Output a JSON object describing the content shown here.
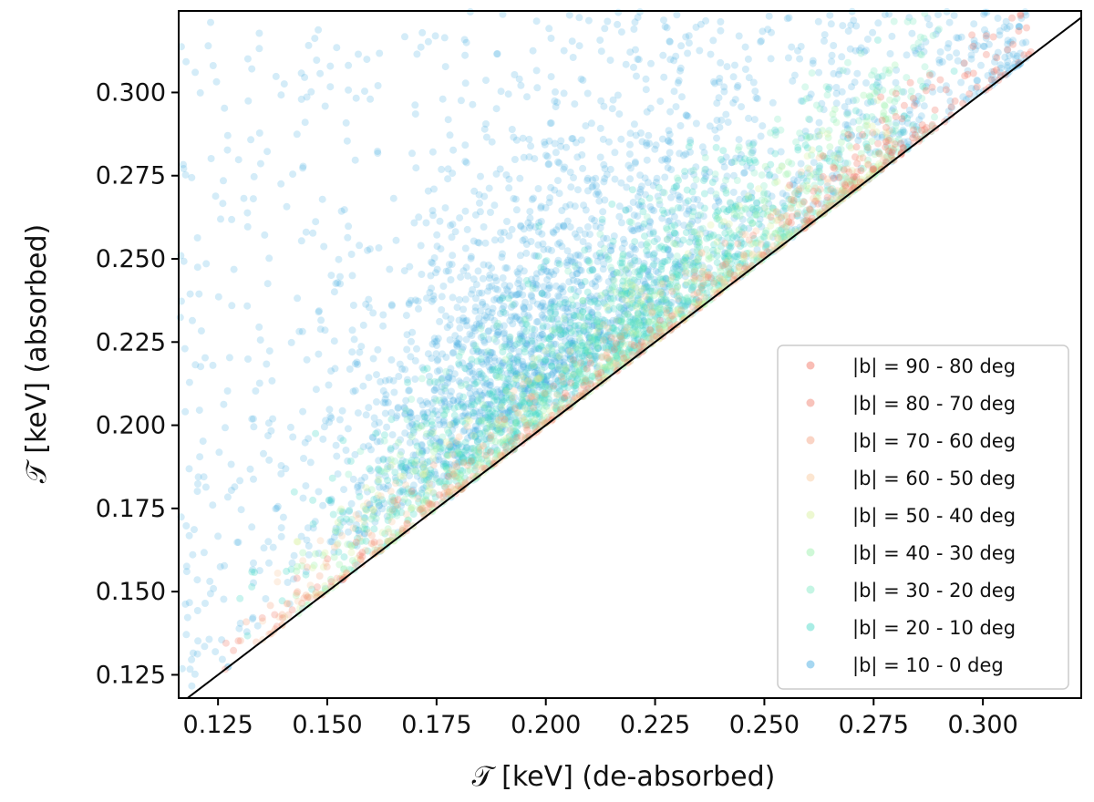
{
  "chart_data": {
    "type": "scatter",
    "xlabel": "𝒯 [keV] (de-absorbed)",
    "ylabel": "𝒯 [keV] (absorbed)",
    "xlim": [
      0.116,
      0.3225
    ],
    "ylim": [
      0.118,
      0.3245
    ],
    "x_ticks": [
      "0.125",
      "0.150",
      "0.175",
      "0.200",
      "0.225",
      "0.250",
      "0.275",
      "0.300"
    ],
    "y_ticks": [
      "0.125",
      "0.150",
      "0.175",
      "0.200",
      "0.225",
      "0.250",
      "0.275",
      "0.300"
    ],
    "reference_line": "y = x",
    "grid": false,
    "legend_position": "lower-right",
    "series": [
      {
        "name": "|b| = 90 - 80 deg",
        "color": "#f26d5b",
        "approx_points": 80,
        "x_range": [
          0.255,
          0.312
        ],
        "y_offset_range": [
          0.0,
          0.022
        ]
      },
      {
        "name": "|b| = 80 - 70 deg",
        "color": "#ef7a68",
        "approx_points": 150,
        "x_range": [
          0.12,
          0.29
        ],
        "y_offset_range": [
          0.0,
          0.012
        ]
      },
      {
        "name": "|b| = 70 - 60 deg",
        "color": "#f4a07e",
        "approx_points": 200,
        "x_range": [
          0.13,
          0.28
        ],
        "y_offset_range": [
          0.0,
          0.014
        ]
      },
      {
        "name": "|b| = 60 - 50 deg",
        "color": "#f8c79a",
        "approx_points": 200,
        "x_range": [
          0.13,
          0.28
        ],
        "y_offset_range": [
          0.0,
          0.018
        ]
      },
      {
        "name": "|b| = 50 - 40 deg",
        "color": "#d6ef9a",
        "approx_points": 250,
        "x_range": [
          0.14,
          0.28
        ],
        "y_offset_range": [
          0.0,
          0.025
        ]
      },
      {
        "name": "|b| = 40 - 30 deg",
        "color": "#95f0a7",
        "approx_points": 350,
        "x_range": [
          0.14,
          0.28
        ],
        "y_offset_range": [
          0.0,
          0.03
        ]
      },
      {
        "name": "|b| = 30 - 20 deg",
        "color": "#7ee8c3",
        "approx_points": 500,
        "x_range": [
          0.15,
          0.29
        ],
        "y_offset_range": [
          0.0,
          0.045
        ]
      },
      {
        "name": "|b| = 20 - 10 deg",
        "color": "#40d8c6",
        "approx_points": 900,
        "x_range": [
          0.16,
          0.28
        ],
        "y_offset_range": [
          0.0,
          0.06
        ]
      },
      {
        "name": "|b| = 10 - 0 deg",
        "color": "#3aa7e0",
        "approx_points": 2600,
        "x_range": [
          0.116,
          0.31
        ],
        "y_offset_range": [
          0.0,
          0.2
        ]
      }
    ]
  }
}
